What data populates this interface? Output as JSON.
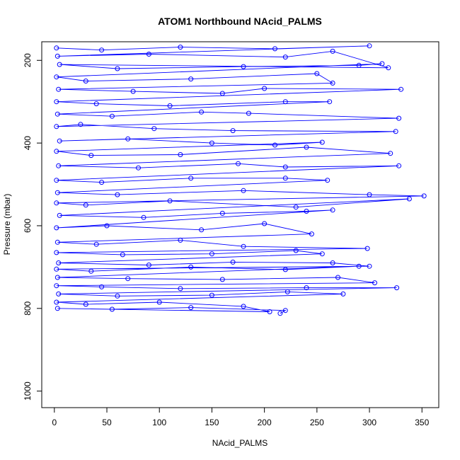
{
  "chart_data": {
    "type": "line",
    "title": "ATOM1 Northbound NAcid_PALMS",
    "xlabel": "NAcid_PALMS",
    "ylabel": "Pressure (mbar)",
    "xlim": [
      -12,
      366
    ],
    "ylim": [
      1040,
      155
    ],
    "y_reversed": true,
    "x_ticks": [
      0,
      50,
      100,
      150,
      200,
      250,
      300,
      350
    ],
    "x_tick_labels": [
      "0",
      "50",
      "100",
      "150",
      "200",
      "250",
      "300",
      "350"
    ],
    "y_ticks": [
      200,
      400,
      600,
      800,
      1000
    ],
    "y_tick_labels": [
      "200",
      "400",
      "600",
      "800",
      "1000"
    ],
    "grid": false,
    "legend": "none",
    "series": [
      {
        "color": "#0000ff",
        "marker": "open-circle",
        "line": true,
        "points": [
          [
            2,
            170
          ],
          [
            45,
            175
          ],
          [
            120,
            168
          ],
          [
            210,
            172
          ],
          [
            300,
            165
          ],
          [
            3,
            190
          ],
          [
            90,
            185
          ],
          [
            220,
            192
          ],
          [
            265,
            178
          ],
          [
            318,
            218
          ],
          [
            5,
            210
          ],
          [
            60,
            220
          ],
          [
            180,
            215
          ],
          [
            290,
            212
          ],
          [
            312,
            208
          ],
          [
            2,
            240
          ],
          [
            30,
            250
          ],
          [
            130,
            245
          ],
          [
            250,
            232
          ],
          [
            265,
            255
          ],
          [
            4,
            270
          ],
          [
            75,
            275
          ],
          [
            160,
            280
          ],
          [
            200,
            268
          ],
          [
            330,
            270
          ],
          [
            2,
            300
          ],
          [
            40,
            305
          ],
          [
            110,
            310
          ],
          [
            220,
            300
          ],
          [
            262,
            300
          ],
          [
            3,
            330
          ],
          [
            55,
            335
          ],
          [
            140,
            325
          ],
          [
            185,
            328
          ],
          [
            328,
            340
          ],
          [
            2,
            360
          ],
          [
            25,
            355
          ],
          [
            95,
            365
          ],
          [
            170,
            370
          ],
          [
            325,
            372
          ],
          [
            5,
            395
          ],
          [
            70,
            390
          ],
          [
            150,
            400
          ],
          [
            210,
            405
          ],
          [
            255,
            398
          ],
          [
            2,
            420
          ],
          [
            35,
            430
          ],
          [
            120,
            428
          ],
          [
            240,
            410
          ],
          [
            320,
            425
          ],
          [
            4,
            455
          ],
          [
            80,
            460
          ],
          [
            175,
            450
          ],
          [
            220,
            458
          ],
          [
            328,
            455
          ],
          [
            2,
            490
          ],
          [
            45,
            495
          ],
          [
            130,
            485
          ],
          [
            220,
            485
          ],
          [
            260,
            490
          ],
          [
            3,
            520
          ],
          [
            60,
            525
          ],
          [
            180,
            515
          ],
          [
            300,
            525
          ],
          [
            352,
            528
          ],
          [
            2,
            545
          ],
          [
            30,
            550
          ],
          [
            110,
            540
          ],
          [
            230,
            555
          ],
          [
            338,
            535
          ],
          [
            5,
            575
          ],
          [
            85,
            580
          ],
          [
            160,
            570
          ],
          [
            240,
            565
          ],
          [
            265,
            562
          ],
          [
            2,
            605
          ],
          [
            50,
            600
          ],
          [
            140,
            610
          ],
          [
            200,
            595
          ],
          [
            245,
            620
          ],
          [
            3,
            640
          ],
          [
            40,
            645
          ],
          [
            120,
            635
          ],
          [
            180,
            650
          ],
          [
            298,
            655
          ],
          [
            2,
            665
          ],
          [
            65,
            670
          ],
          [
            150,
            668
          ],
          [
            230,
            660
          ],
          [
            255,
            668
          ],
          [
            4,
            690
          ],
          [
            90,
            695
          ],
          [
            170,
            688
          ],
          [
            265,
            690
          ],
          [
            300,
            698
          ],
          [
            2,
            705
          ],
          [
            35,
            710
          ],
          [
            130,
            700
          ],
          [
            220,
            706
          ],
          [
            290,
            698
          ],
          [
            3,
            725
          ],
          [
            70,
            728
          ],
          [
            160,
            730
          ],
          [
            270,
            725
          ],
          [
            305,
            738
          ],
          [
            2,
            745
          ],
          [
            45,
            748
          ],
          [
            120,
            752
          ],
          [
            240,
            750
          ],
          [
            326,
            750
          ],
          [
            4,
            765
          ],
          [
            60,
            770
          ],
          [
            150,
            768
          ],
          [
            222,
            760
          ],
          [
            275,
            765
          ],
          [
            2,
            785
          ],
          [
            30,
            790
          ],
          [
            100,
            785
          ],
          [
            180,
            795
          ],
          [
            205,
            808
          ],
          [
            3,
            800
          ],
          [
            55,
            802
          ],
          [
            130,
            798
          ],
          [
            220,
            805
          ],
          [
            215,
            812
          ]
        ]
      }
    ]
  }
}
